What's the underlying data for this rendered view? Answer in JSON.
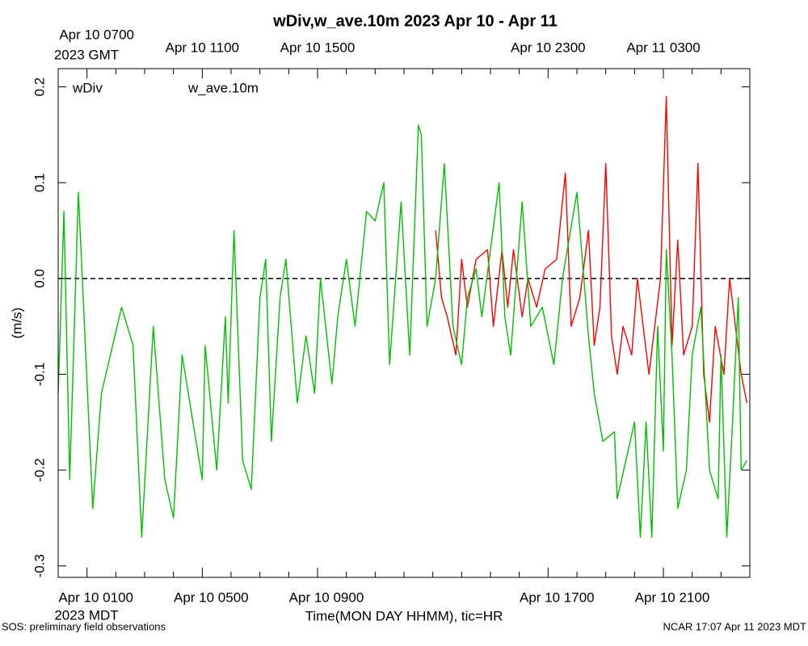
{
  "chart_data": {
    "type": "line",
    "title": "wDiv,w_ave.10m 2023 Apr 10 - Apr 11",
    "y_label": "(m/s)",
    "x_label": "Time(MON DAY HHMM), tic=HR",
    "x_timezone_label": "2023 MDT",
    "x2_timezone_label": "2023 GMT",
    "footer_left": "SOS: preliminary field observations",
    "footer_right": "NCAR 17:07 Apr 11 2023 MDT",
    "xlim": [
      "2023-04-10 00:00",
      "2023-04-11 00:00"
    ],
    "x2lim": [
      "2023-04-10 06:00",
      "2023-04-11 06:00"
    ],
    "ylim": [
      -0.312,
      0.219
    ],
    "yticks": [
      -0.3,
      -0.2,
      -0.1,
      {
        "value": 0,
        "label": "0.0"
      },
      0.1,
      0.2
    ],
    "hline": 0,
    "xticks": [
      "2023-04-10 00:00",
      {
        "value": "2023-04-10 01:00",
        "label": "Apr 10 0100"
      },
      "2023-04-10 02:00",
      "2023-04-10 03:00",
      "2023-04-10 04:00",
      {
        "value": "2023-04-10 05:00",
        "label": "Apr 10 0500"
      },
      "2023-04-10 06:00",
      "2023-04-10 07:00",
      "2023-04-10 08:00",
      {
        "value": "2023-04-10 09:00",
        "label": "Apr 10 0900"
      },
      "2023-04-10 10:00",
      "2023-04-10 11:00",
      "2023-04-10 12:00",
      "2023-04-10 13:00",
      "2023-04-10 14:00",
      "2023-04-10 15:00",
      "2023-04-10 16:00",
      {
        "value": "2023-04-10 17:00",
        "label": "Apr 10 1700"
      },
      "2023-04-10 18:00",
      "2023-04-10 19:00",
      "2023-04-10 20:00",
      {
        "value": "2023-04-10 21:00",
        "label": "Apr 10 2100"
      },
      "2023-04-10 22:00",
      "2023-04-10 23:00",
      "2023-04-11 00:00"
    ],
    "x2ticks": [
      {
        "value": "2023-04-10 07:00",
        "label": "Apr 10 0700"
      },
      {
        "value": "2023-04-10 11:00",
        "label": "Apr 10 1100"
      },
      {
        "value": "2023-04-10 15:00",
        "label": "Apr 10 1500"
      },
      {
        "value": "2023-04-10 23:00",
        "label": "Apr 10 2300"
      },
      {
        "value": "2023-04-11 03:00",
        "label": "Apr 11 0300"
      }
    ],
    "series": [
      {
        "name": "wDiv",
        "color": "#ff0000",
        "x": [
          "2023-04-10 13:06",
          "2023-04-10 13:18",
          "2023-04-10 13:30",
          "2023-04-10 13:48",
          "2023-04-10 14:00",
          "2023-04-10 14:12",
          "2023-04-10 14:30",
          "2023-04-10 14:54",
          "2023-04-10 15:06",
          "2023-04-10 15:24",
          "2023-04-10 15:36",
          "2023-04-10 15:48",
          "2023-04-10 16:06",
          "2023-04-10 16:18",
          "2023-04-10 16:36",
          "2023-04-10 16:54",
          "2023-04-10 17:18",
          "2023-04-10 17:36",
          "2023-04-10 17:48",
          "2023-04-10 18:06",
          "2023-04-10 18:24",
          "2023-04-10 18:36",
          "2023-04-10 18:48",
          "2023-04-10 19:00",
          "2023-04-10 19:12",
          "2023-04-10 19:24",
          "2023-04-10 19:36",
          "2023-04-10 19:54",
          "2023-04-10 20:06",
          "2023-04-10 20:18",
          "2023-04-10 20:30",
          "2023-04-10 20:42",
          "2023-04-10 20:54",
          "2023-04-10 21:06",
          "2023-04-10 21:18",
          "2023-04-10 21:30",
          "2023-04-10 21:42",
          "2023-04-10 22:00",
          "2023-04-10 22:12",
          "2023-04-10 22:24",
          "2023-04-10 22:36",
          "2023-04-10 22:48",
          "2023-04-10 23:06",
          "2023-04-10 23:18",
          "2023-04-10 23:30",
          "2023-04-10 23:42",
          "2023-04-10 23:54"
        ],
        "values": [
          0.05,
          -0.02,
          -0.04,
          -0.08,
          0.02,
          -0.03,
          0.02,
          0.03,
          -0.05,
          0.03,
          -0.03,
          0.03,
          -0.04,
          0.0,
          -0.03,
          0.01,
          0.02,
          0.11,
          -0.05,
          -0.02,
          0.05,
          -0.07,
          -0.03,
          0.12,
          -0.06,
          -0.1,
          -0.05,
          -0.08,
          0.0,
          -0.05,
          -0.1,
          -0.05,
          0.0,
          0.19,
          -0.07,
          0.04,
          -0.08,
          -0.05,
          0.12,
          -0.1,
          -0.15,
          -0.05,
          -0.1,
          0.0,
          -0.05,
          -0.1,
          -0.13
        ]
      },
      {
        "name": "w_ave.10m",
        "color": "#00c000",
        "x": [
          "2023-04-10 00:00",
          "2023-04-10 00:12",
          "2023-04-10 00:24",
          "2023-04-10 00:42",
          "2023-04-10 01:12",
          "2023-04-10 01:30",
          "2023-04-10 02:12",
          "2023-04-10 02:36",
          "2023-04-10 02:54",
          "2023-04-10 03:18",
          "2023-04-10 03:42",
          "2023-04-10 04:00",
          "2023-04-10 04:18",
          "2023-04-10 05:00",
          "2023-04-10 05:06",
          "2023-04-10 05:30",
          "2023-04-10 05:48",
          "2023-04-10 05:54",
          "2023-04-10 06:06",
          "2023-04-10 06:24",
          "2023-04-10 06:42",
          "2023-04-10 07:00",
          "2023-04-10 07:12",
          "2023-04-10 07:24",
          "2023-04-10 07:42",
          "2023-04-10 07:54",
          "2023-04-10 08:18",
          "2023-04-10 08:36",
          "2023-04-10 08:54",
          "2023-04-10 09:06",
          "2023-04-10 09:30",
          "2023-04-10 09:42",
          "2023-04-10 10:00",
          "2023-04-10 10:18",
          "2023-04-10 10:42",
          "2023-04-10 11:00",
          "2023-04-10 11:18",
          "2023-04-10 11:30",
          "2023-04-10 11:54",
          "2023-04-10 12:12",
          "2023-04-10 12:30",
          "2023-04-10 12:36",
          "2023-04-10 12:48",
          "2023-04-10 13:06",
          "2023-04-10 13:24",
          "2023-04-10 13:42",
          "2023-04-10 14:00",
          "2023-04-10 14:12",
          "2023-04-10 14:30",
          "2023-04-10 14:42",
          "2023-04-10 15:18",
          "2023-04-10 15:30",
          "2023-04-10 15:42",
          "2023-04-10 16:06",
          "2023-04-10 16:24",
          "2023-04-10 16:48",
          "2023-04-10 17:12",
          "2023-04-10 17:30",
          "2023-04-10 18:00",
          "2023-04-10 18:24",
          "2023-04-10 18:36",
          "2023-04-10 18:54",
          "2023-04-10 19:18",
          "2023-04-10 19:24",
          "2023-04-10 20:00",
          "2023-04-10 20:12",
          "2023-04-10 20:24",
          "2023-04-10 20:36",
          "2023-04-10 20:48",
          "2023-04-10 21:00",
          "2023-04-10 21:06",
          "2023-04-10 21:18",
          "2023-04-10 21:30",
          "2023-04-10 21:48",
          "2023-04-10 22:00",
          "2023-04-10 22:18",
          "2023-04-10 22:36",
          "2023-04-10 22:54",
          "2023-04-10 23:00",
          "2023-04-10 23:12",
          "2023-04-10 23:24",
          "2023-04-10 23:36",
          "2023-04-10 23:42",
          "2023-04-10 23:54"
        ],
        "values": [
          -0.12,
          0.07,
          -0.21,
          0.09,
          -0.24,
          -0.12,
          -0.03,
          -0.07,
          -0.27,
          -0.05,
          -0.21,
          -0.25,
          -0.08,
          -0.21,
          -0.07,
          -0.2,
          -0.04,
          -0.13,
          0.05,
          -0.19,
          -0.22,
          -0.02,
          0.02,
          -0.17,
          -0.02,
          0.02,
          -0.13,
          -0.06,
          -0.12,
          0.0,
          -0.11,
          -0.04,
          0.02,
          -0.05,
          0.07,
          0.06,
          0.1,
          -0.09,
          0.08,
          -0.08,
          0.16,
          0.15,
          -0.05,
          0.0,
          0.12,
          -0.05,
          -0.09,
          -0.02,
          0.01,
          -0.04,
          0.1,
          -0.04,
          -0.08,
          0.08,
          -0.05,
          -0.03,
          -0.09,
          0.0,
          0.09,
          -0.06,
          -0.12,
          -0.17,
          -0.16,
          -0.23,
          -0.15,
          -0.27,
          -0.15,
          -0.27,
          -0.05,
          -0.18,
          0.03,
          -0.08,
          -0.24,
          -0.2,
          -0.08,
          -0.03,
          -0.2,
          -0.23,
          -0.08,
          -0.27,
          -0.15,
          -0.02,
          -0.2,
          -0.19
        ]
      }
    ]
  }
}
